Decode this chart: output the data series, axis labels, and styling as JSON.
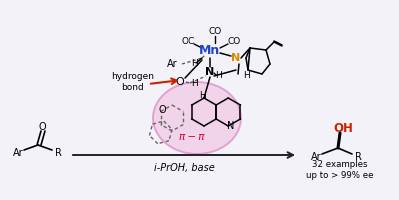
{
  "bg_color": "#f2f2f8",
  "arrow_color": "#222222",
  "mn_color": "#2244cc",
  "n_color": "#dd8800",
  "o_color": "#cc2200",
  "pi_color": "#cc0033",
  "red_arrow_color": "#cc2200",
  "hbond_text": "hydrogen\nbond",
  "reagent_text": "i-PrOH, base",
  "examples_text": "32 examples\nup to > 99% ee",
  "pi_pi_text": "π − π"
}
